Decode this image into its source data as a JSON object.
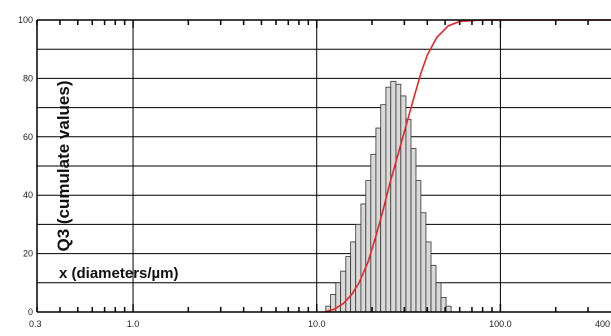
{
  "chart_data": {
    "type": "bar",
    "title": "",
    "xlabel": "x (diameters/µm)",
    "ylabel": "Q3 (cumulate values)",
    "x_scale": "log",
    "xlim": [
      0.3,
      400
    ],
    "ylim": [
      0,
      100
    ],
    "x_tick_labels": [
      "0.3",
      "1.0",
      "10.0",
      "100.0",
      "400"
    ],
    "y_tick_labels": [
      "0",
      "20",
      "40",
      "60",
      "80",
      "100"
    ],
    "grid": true,
    "colors": {
      "bars_fill": "#d9d9d9",
      "bars_stroke": "#333333",
      "curve": "#e8262a",
      "grid": "#000000"
    },
    "series": [
      {
        "kind": "histogram",
        "bins": [
          {
            "x0": 11.2,
            "x1": 11.9,
            "y": 2
          },
          {
            "x0": 11.9,
            "x1": 12.7,
            "y": 6
          },
          {
            "x0": 12.7,
            "x1": 13.5,
            "y": 10
          },
          {
            "x0": 13.5,
            "x1": 14.4,
            "y": 14
          },
          {
            "x0": 14.4,
            "x1": 15.3,
            "y": 19
          },
          {
            "x0": 15.3,
            "x1": 16.3,
            "y": 24
          },
          {
            "x0": 16.3,
            "x1": 17.4,
            "y": 30
          },
          {
            "x0": 17.4,
            "x1": 18.5,
            "y": 37
          },
          {
            "x0": 18.5,
            "x1": 19.7,
            "y": 45
          },
          {
            "x0": 19.7,
            "x1": 21.0,
            "y": 54
          },
          {
            "x0": 21.0,
            "x1": 22.3,
            "y": 63
          },
          {
            "x0": 22.3,
            "x1": 23.8,
            "y": 71
          },
          {
            "x0": 23.8,
            "x1": 25.3,
            "y": 77
          },
          {
            "x0": 25.3,
            "x1": 27.0,
            "y": 79
          },
          {
            "x0": 27.0,
            "x1": 28.7,
            "y": 78
          },
          {
            "x0": 28.7,
            "x1": 30.6,
            "y": 74
          },
          {
            "x0": 30.6,
            "x1": 32.6,
            "y": 66
          },
          {
            "x0": 32.6,
            "x1": 34.7,
            "y": 56
          },
          {
            "x0": 34.7,
            "x1": 36.9,
            "y": 45
          },
          {
            "x0": 36.9,
            "x1": 39.3,
            "y": 34
          },
          {
            "x0": 39.3,
            "x1": 41.9,
            "y": 24
          },
          {
            "x0": 41.9,
            "x1": 44.6,
            "y": 16
          },
          {
            "x0": 44.6,
            "x1": 47.5,
            "y": 10
          },
          {
            "x0": 47.5,
            "x1": 50.6,
            "y": 5
          },
          {
            "x0": 50.6,
            "x1": 53.9,
            "y": 2
          }
        ]
      },
      {
        "kind": "cumulative",
        "x": [
          11.0,
          12.5,
          14,
          15.5,
          17,
          19,
          21,
          23,
          25,
          28,
          31,
          34,
          37,
          40,
          45,
          52,
          60,
          80,
          120,
          200,
          400
        ],
        "y": [
          0,
          1,
          3,
          6,
          10,
          17,
          26,
          35,
          44,
          55,
          65,
          74,
          82,
          88,
          94,
          98,
          99.5,
          100,
          100,
          100,
          100
        ]
      }
    ]
  }
}
